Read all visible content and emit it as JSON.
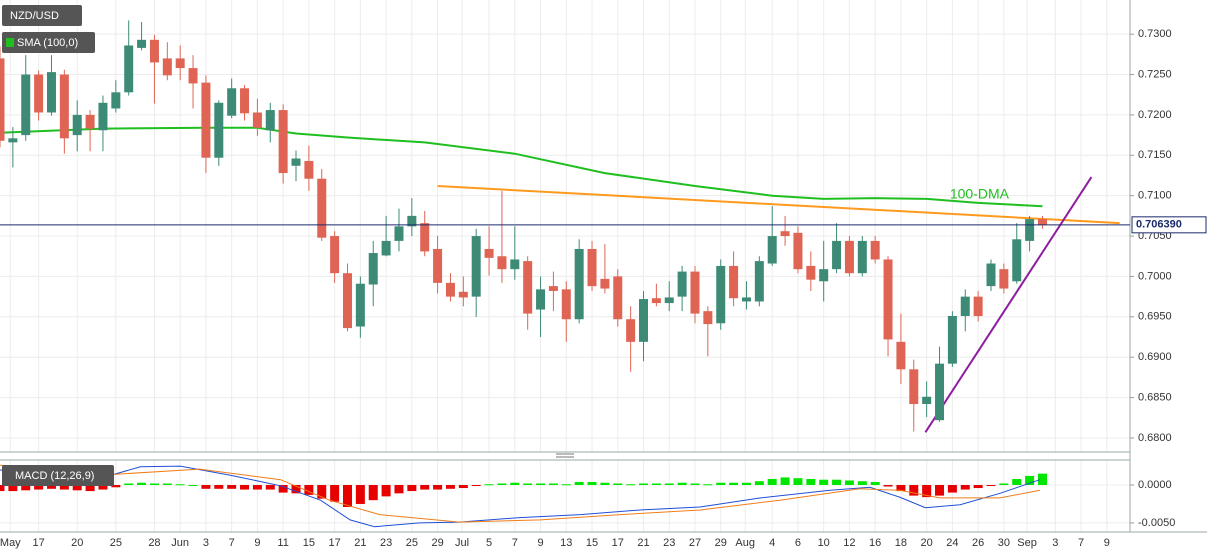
{
  "chart_data": [
    {
      "type": "candlestick",
      "title": "NZD/USD",
      "x": [
        0,
        1,
        2,
        3,
        4,
        5,
        6,
        7,
        8,
        9,
        10,
        11,
        12,
        13,
        14,
        15,
        16,
        17,
        18,
        19,
        20,
        21,
        22,
        23,
        24,
        25,
        26,
        27,
        28,
        29,
        30,
        31,
        32,
        33,
        34,
        35,
        36,
        37,
        38,
        39,
        40,
        41,
        42,
        43,
        44,
        45,
        46,
        47,
        48,
        49,
        50,
        51,
        52,
        53,
        54,
        55,
        56,
        57,
        58,
        59,
        60,
        61,
        62,
        63,
        64,
        65,
        66,
        67,
        68,
        69,
        70,
        71,
        72,
        73,
        74,
        75,
        76,
        77,
        78,
        79,
        80,
        81
      ],
      "open": [
        0.727,
        0.7166,
        0.7175,
        0.725,
        0.7203,
        0.725,
        0.7175,
        0.72,
        0.7181,
        0.7208,
        0.7228,
        0.7283,
        0.7293,
        0.727,
        0.727,
        0.7258,
        0.724,
        0.7147,
        0.7199,
        0.7233,
        0.7203,
        0.7181,
        0.7206,
        0.7137,
        0.7143,
        0.7121,
        0.705,
        0.7004,
        0.6938,
        0.699,
        0.7026,
        0.7044,
        0.7062,
        0.7066,
        0.7034,
        0.6992,
        0.6981,
        0.6975,
        0.7034,
        0.7025,
        0.7009,
        0.7019,
        0.6959,
        0.6988,
        0.6984,
        0.6947,
        0.7034,
        0.6997,
        0.7,
        0.6947,
        0.6919,
        0.6973,
        0.6967,
        0.6975,
        0.7006,
        0.6957,
        0.6942,
        0.7013,
        0.6969,
        0.6969,
        0.7016,
        0.7056,
        0.7054,
        0.7013,
        0.6994,
        0.7009,
        0.7044,
        0.7004,
        0.7044,
        0.7021,
        0.6919,
        0.6885,
        0.6842,
        0.6822,
        0.6892,
        0.6951,
        0.6975,
        0.6988,
        0.7009,
        0.6994,
        0.7044,
        0.7071
      ],
      "high": [
        0.7285,
        0.7185,
        0.7274,
        0.7255,
        0.7274,
        0.7256,
        0.7218,
        0.7206,
        0.7224,
        0.7243,
        0.7317,
        0.7315,
        0.7299,
        0.729,
        0.7286,
        0.7274,
        0.7249,
        0.7218,
        0.7245,
        0.7237,
        0.722,
        0.7215,
        0.7213,
        0.7156,
        0.7162,
        0.7133,
        0.7056,
        0.7016,
        0.7,
        0.7044,
        0.7075,
        0.7084,
        0.7097,
        0.7081,
        0.705,
        0.7004,
        0.7,
        0.7059,
        0.7062,
        0.7106,
        0.7062,
        0.7025,
        0.7,
        0.7006,
        0.6994,
        0.7046,
        0.7044,
        0.704,
        0.7009,
        0.6963,
        0.6982,
        0.6991,
        0.6994,
        0.7013,
        0.7013,
        0.6963,
        0.7021,
        0.7031,
        0.6994,
        0.7025,
        0.7087,
        0.7075,
        0.7062,
        0.7031,
        0.7044,
        0.7066,
        0.705,
        0.705,
        0.705,
        0.7025,
        0.6954,
        0.6897,
        0.687,
        0.6913,
        0.6957,
        0.6984,
        0.6982,
        0.7021,
        0.7016,
        0.7066,
        0.7075,
        0.7075
      ],
      "low": [
        0.716,
        0.7135,
        0.7168,
        0.7193,
        0.7199,
        0.7152,
        0.7155,
        0.7155,
        0.7155,
        0.7203,
        0.7224,
        0.728,
        0.7214,
        0.7243,
        0.7243,
        0.7208,
        0.7128,
        0.7137,
        0.7196,
        0.7193,
        0.7174,
        0.7166,
        0.7115,
        0.7118,
        0.7106,
        0.7044,
        0.6992,
        0.6932,
        0.6924,
        0.6963,
        0.7025,
        0.7031,
        0.705,
        0.7025,
        0.6979,
        0.6969,
        0.6963,
        0.695,
        0.7001,
        0.6992,
        0.6996,
        0.6934,
        0.6925,
        0.6957,
        0.6919,
        0.6942,
        0.6982,
        0.6979,
        0.6938,
        0.6882,
        0.6895,
        0.6963,
        0.6957,
        0.6957,
        0.6942,
        0.6901,
        0.6934,
        0.6963,
        0.6959,
        0.6963,
        0.7013,
        0.7038,
        0.7004,
        0.6982,
        0.6969,
        0.7004,
        0.7,
        0.7,
        0.7016,
        0.6901,
        0.6867,
        0.6808,
        0.6826,
        0.682,
        0.6888,
        0.6932,
        0.6944,
        0.6982,
        0.6979,
        0.6991,
        0.7031,
        0.7059
      ],
      "close": [
        0.7168,
        0.7171,
        0.725,
        0.7203,
        0.7253,
        0.7171,
        0.72,
        0.7183,
        0.7215,
        0.7228,
        0.7286,
        0.7293,
        0.7265,
        0.7249,
        0.7258,
        0.7239,
        0.7147,
        0.7215,
        0.7233,
        0.7202,
        0.7184,
        0.7206,
        0.7128,
        0.7146,
        0.7121,
        0.7048,
        0.7004,
        0.6936,
        0.6991,
        0.7029,
        0.7044,
        0.7062,
        0.7075,
        0.7031,
        0.6992,
        0.6975,
        0.6974,
        0.705,
        0.7023,
        0.7009,
        0.7021,
        0.6954,
        0.6984,
        0.6982,
        0.6947,
        0.7034,
        0.6988,
        0.6985,
        0.6947,
        0.6919,
        0.6972,
        0.6967,
        0.6974,
        0.7006,
        0.6954,
        0.6941,
        0.7013,
        0.6973,
        0.6974,
        0.7019,
        0.705,
        0.705,
        0.7009,
        0.6996,
        0.7009,
        0.7044,
        0.7004,
        0.7044,
        0.7021,
        0.6922,
        0.6885,
        0.6842,
        0.6851,
        0.6892,
        0.6951,
        0.6975,
        0.6951,
        0.7016,
        0.6985,
        0.7046,
        0.7071,
        0.7064
      ],
      "up_color": "#3d8b76",
      "down_color": "#df6454",
      "xlim": [
        0,
        87.8
      ],
      "ylim": [
        0.67826,
        0.73423
      ],
      "yticks": [
        {
          "value": 0.68,
          "label": "0.6800"
        },
        {
          "value": 0.685,
          "label": "0.6850"
        },
        {
          "value": 0.69,
          "label": "0.6900"
        },
        {
          "value": 0.695,
          "label": "0.6950"
        },
        {
          "value": 0.7,
          "label": "0.7000"
        },
        {
          "value": 0.705,
          "label": "0.7050"
        },
        {
          "value": 0.71,
          "label": "0.7100"
        },
        {
          "value": 0.715,
          "label": "0.7150"
        },
        {
          "value": 0.72,
          "label": "0.7200"
        },
        {
          "value": 0.725,
          "label": "0.7250"
        },
        {
          "value": 0.73,
          "label": "0.7300"
        }
      ],
      "xticks": [
        {
          "value": 0.8,
          "label": "May"
        },
        {
          "value": 3,
          "label": "17"
        },
        {
          "value": 6,
          "label": "20"
        },
        {
          "value": 9,
          "label": "25"
        },
        {
          "value": 12,
          "label": "28"
        },
        {
          "value": 14,
          "label": "Jun"
        },
        {
          "value": 16,
          "label": "3"
        },
        {
          "value": 18,
          "label": "7"
        },
        {
          "value": 20,
          "label": "9"
        },
        {
          "value": 22,
          "label": "11"
        },
        {
          "value": 24,
          "label": "15"
        },
        {
          "value": 26,
          "label": "17"
        },
        {
          "value": 28,
          "label": "21"
        },
        {
          "value": 30,
          "label": "23"
        },
        {
          "value": 32,
          "label": "25"
        },
        {
          "value": 34,
          "label": "29"
        },
        {
          "value": 35.9,
          "label": "Jul"
        },
        {
          "value": 38,
          "label": "5"
        },
        {
          "value": 40,
          "label": "7"
        },
        {
          "value": 42,
          "label": "9"
        },
        {
          "value": 44,
          "label": "13"
        },
        {
          "value": 46,
          "label": "15"
        },
        {
          "value": 48,
          "label": "17"
        },
        {
          "value": 50,
          "label": "21"
        },
        {
          "value": 52,
          "label": "23"
        },
        {
          "value": 54,
          "label": "27"
        },
        {
          "value": 56,
          "label": "29"
        },
        {
          "value": 57.9,
          "label": "Aug"
        },
        {
          "value": 60,
          "label": "4"
        },
        {
          "value": 62,
          "label": "6"
        },
        {
          "value": 64,
          "label": "10"
        },
        {
          "value": 66,
          "label": "12"
        },
        {
          "value": 68,
          "label": "16"
        },
        {
          "value": 70,
          "label": "18"
        },
        {
          "value": 72,
          "label": "20"
        },
        {
          "value": 74,
          "label": "24"
        },
        {
          "value": 76,
          "label": "26"
        },
        {
          "value": 78,
          "label": "30"
        },
        {
          "value": 79.8,
          "label": "Sep"
        },
        {
          "value": 82,
          "label": "3"
        },
        {
          "value": 84,
          "label": "7"
        },
        {
          "value": 86,
          "label": "9"
        }
      ],
      "grid": true,
      "sma": {
        "name": "SMA (100,0)",
        "color": "#1fbf1f",
        "x": [
          0,
          8,
          16,
          20,
          23,
          27,
          33,
          40,
          47,
          54,
          60,
          64,
          68,
          72,
          76,
          81
        ],
        "values": [
          0.7178,
          0.7183,
          0.7184,
          0.7184,
          0.7177,
          0.7172,
          0.7166,
          0.7152,
          0.7128,
          0.7112,
          0.71,
          0.7096,
          0.7097,
          0.7096,
          0.7091,
          0.7087
        ]
      },
      "annotation": {
        "text": "100-DMA",
        "x": 73.8,
        "y": 0.7101
      },
      "trendlines": [
        {
          "color": "#ff9a1f",
          "x": [
            34,
            87
          ],
          "values": [
            0.7112,
            0.7066
          ]
        },
        {
          "color": "#8e1ea0",
          "x": [
            71.9,
            84.8
          ],
          "values": [
            0.6807,
            0.7123
          ]
        }
      ],
      "last_price": {
        "value": 0.70639,
        "label": "0.706390"
      }
    },
    {
      "type": "macd",
      "title": "MACD (12,26,9)",
      "ylim": [
        -0.0062,
        0.0033
      ],
      "yticks": [
        {
          "value": -0.005,
          "label": "-0.0050"
        },
        {
          "value": 0,
          "label": "0.0000"
        }
      ],
      "histogram": [
        -0.0008,
        -0.0008,
        -0.0007,
        -0.0006,
        -0.0005,
        -0.0006,
        -0.0007,
        -0.0008,
        -0.0006,
        -0.0003,
        0.0002,
        0.0003,
        0.0002,
        0.0002,
        0.0001,
        0,
        -0.0005,
        -0.0005,
        -0.0005,
        -0.0006,
        -0.0006,
        -0.0006,
        -0.001,
        -0.0011,
        -0.0013,
        -0.0018,
        -0.0022,
        -0.0029,
        -0.0025,
        -0.002,
        -0.0015,
        -0.0011,
        -0.0008,
        -0.0006,
        -0.0006,
        -0.0005,
        -0.0004,
        -0.0001,
        0.0001,
        0.0002,
        0.0003,
        0.0002,
        0.0002,
        0.0002,
        0.0001,
        0.0004,
        0.0004,
        0.0003,
        0.0002,
        0.0001,
        0.0002,
        0.0002,
        0.0002,
        0.0003,
        0.0002,
        0.0001,
        0.0003,
        0.0003,
        0.0003,
        0.0005,
        0.0008,
        0.001,
        0.0009,
        0.0008,
        0.0007,
        0.0007,
        0.0006,
        0.0005,
        0.0004,
        -0.0002,
        -0.0008,
        -0.0014,
        -0.0016,
        -0.0014,
        -0.001,
        -0.0006,
        -0.0004,
        -0.0001,
        0.0002,
        0.0008,
        0.0012,
        0.0015
      ],
      "pos_color": "#00e600",
      "neg_color": "#e60000",
      "lines": [
        {
          "color": "#1f4fd6",
          "x": [
            0,
            3.9,
            7.8,
            10.9,
            14,
            17.9,
            21.8,
            24.9,
            27.2,
            29.1,
            32.6,
            35.7,
            40.4,
            45.1,
            49.7,
            54.4,
            59.1,
            64.5,
            67.6,
            69.9,
            71.9,
            74.6,
            77.7,
            80.8
          ],
          "values": [
            0.002,
            0.0009,
            0.0009,
            0.0024,
            0.0025,
            0.0013,
            -0.0001,
            -0.002,
            -0.0046,
            -0.0055,
            -0.005,
            -0.0049,
            -0.0043,
            -0.0039,
            -0.0033,
            -0.0029,
            -0.0017,
            -0.0007,
            -0.0003,
            -0.0016,
            -0.003,
            -0.0026,
            -0.0011,
            0.0007
          ]
        },
        {
          "color": "#f07d1a",
          "x": [
            0,
            7.8,
            15.5,
            21.8,
            25.6,
            29.5,
            35.7,
            42,
            48.2,
            54.4,
            60.6,
            66.8,
            69.9,
            73,
            77.7,
            80.8
          ],
          "values": [
            0.0026,
            0.0013,
            0.0021,
            0.0007,
            -0.002,
            -0.0039,
            -0.0049,
            -0.0046,
            -0.0039,
            -0.0033,
            -0.002,
            -0.0005,
            -0.0007,
            -0.0017,
            -0.0017,
            -0.0007
          ]
        }
      ]
    }
  ]
}
